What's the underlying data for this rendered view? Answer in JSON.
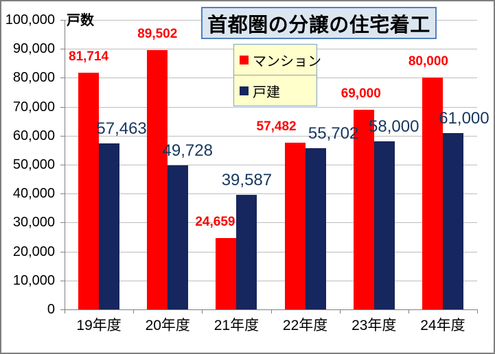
{
  "window": {
    "background": "#FFFFFF",
    "border_color": "#7F7F7F"
  },
  "title_box": {
    "text": "首都圏の分譲の住宅着工",
    "background": "#DCE6F1",
    "border_color": "#4F81BD"
  },
  "legend": {
    "background": "#FFFFCC",
    "border_color": "#7BA0CD",
    "items": [
      {
        "label": "マンション",
        "color": "#FF0000"
      },
      {
        "label": "戸建",
        "color": "#16265E"
      }
    ]
  },
  "chart_data": {
    "type": "bar",
    "title": "首都圏の分譲の住宅着工",
    "y_axis_title": "戸数",
    "xlabel": "",
    "ylabel": "戸数",
    "categories": [
      "19年度",
      "20年度",
      "21年度",
      "22年度",
      "23年度",
      "24年度"
    ],
    "series": [
      {
        "name": "マンション",
        "color": "#FF0000",
        "label_color": "#FF0000",
        "values": [
          81714,
          89502,
          24659,
          57482,
          69000,
          80000
        ],
        "labels": [
          "81,714",
          "89,502",
          "24,659",
          "57,482",
          "69,000",
          "80,000"
        ]
      },
      {
        "name": "戸建",
        "color": "#16265E",
        "label_color": "#17375E",
        "values": [
          57463,
          49728,
          39587,
          55702,
          58000,
          61000
        ],
        "labels": [
          "57,463",
          "49,728",
          "39,587",
          "55,702",
          "58,000",
          "61,000"
        ]
      }
    ],
    "ylim": [
      0,
      100000
    ],
    "y_tick_interval": 10000,
    "y_tick_labels": [
      "0",
      "10,000",
      "20,000",
      "30,000",
      "40,000",
      "50,000",
      "60,000",
      "70,000",
      "80,000",
      "90,000",
      "100,000"
    ],
    "grid": true,
    "gridline_color": "#BDBDBD",
    "axis_color": "#808080",
    "legend_position": "top-center",
    "data_labels": "outside-end"
  }
}
